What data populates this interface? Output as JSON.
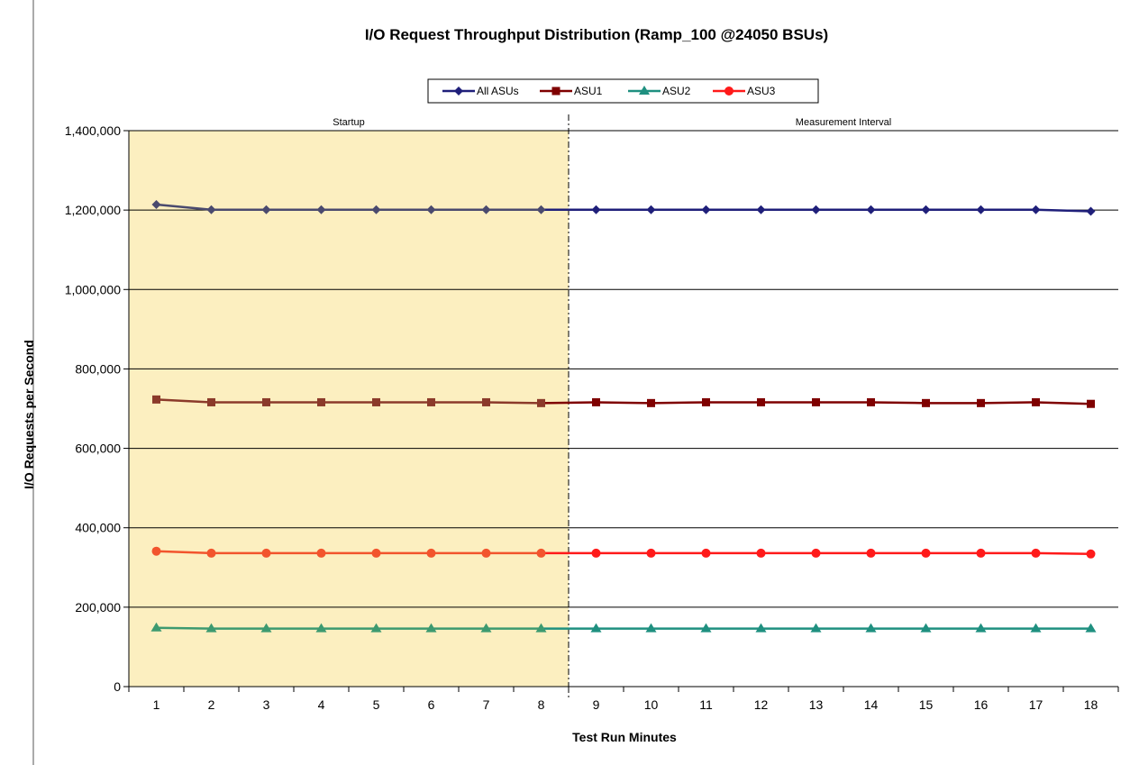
{
  "chart_data": {
    "type": "line",
    "title": "I/O Request Throughput Distribution (Ramp_100 @24050 BSUs)",
    "xlabel": "Test Run Minutes",
    "ylabel": "I/O Requests  per Second",
    "x": [
      1,
      2,
      3,
      4,
      5,
      6,
      7,
      8,
      9,
      10,
      11,
      12,
      13,
      14,
      15,
      16,
      17,
      18
    ],
    "ylim": [
      0,
      1400000
    ],
    "yticks": [
      0,
      200000,
      400000,
      600000,
      800000,
      1000000,
      1200000,
      1400000
    ],
    "ytick_labels": [
      "0",
      "200,000",
      "400,000",
      "600,000",
      "800,000",
      "1,000,000",
      "1,200,000",
      "1,400,000"
    ],
    "grid": true,
    "legend_position": "top-center",
    "regions": [
      {
        "label": "Startup",
        "x_start": 1,
        "x_end": 8,
        "color": "#FCEFC0"
      },
      {
        "label": "Measurement Interval",
        "x_start": 9,
        "x_end": 18,
        "color": "#FFFFFF"
      }
    ],
    "series": [
      {
        "name": "All ASUs",
        "color": "#1F1F7A",
        "startup_color": "#4A4A6E",
        "marker": "diamond",
        "values": [
          1214000,
          1201000,
          1201000,
          1201000,
          1201000,
          1201000,
          1201000,
          1201000,
          1201000,
          1201000,
          1201000,
          1201000,
          1201000,
          1201000,
          1201000,
          1201000,
          1201000,
          1197000
        ]
      },
      {
        "name": "ASU1",
        "color": "#7F0000",
        "startup_color": "#8B3A2A",
        "marker": "square",
        "values": [
          723000,
          716000,
          716000,
          716000,
          716000,
          716000,
          716000,
          714000,
          716000,
          714000,
          716000,
          716000,
          716000,
          716000,
          714000,
          714000,
          716000,
          712000
        ]
      },
      {
        "name": "ASU2",
        "color": "#1F9080",
        "startup_color": "#3D9A70",
        "marker": "triangle",
        "values": [
          148000,
          146000,
          146000,
          146000,
          146000,
          146000,
          146000,
          146000,
          146000,
          146000,
          146000,
          146000,
          146000,
          146000,
          146000,
          146000,
          146000,
          146000
        ]
      },
      {
        "name": "ASU3",
        "color": "#FF1A1A",
        "startup_color": "#F2542D",
        "marker": "circle",
        "values": [
          341000,
          336000,
          336000,
          336000,
          336000,
          336000,
          336000,
          336000,
          336000,
          336000,
          336000,
          336000,
          336000,
          336000,
          336000,
          336000,
          336000,
          334000
        ]
      }
    ]
  }
}
